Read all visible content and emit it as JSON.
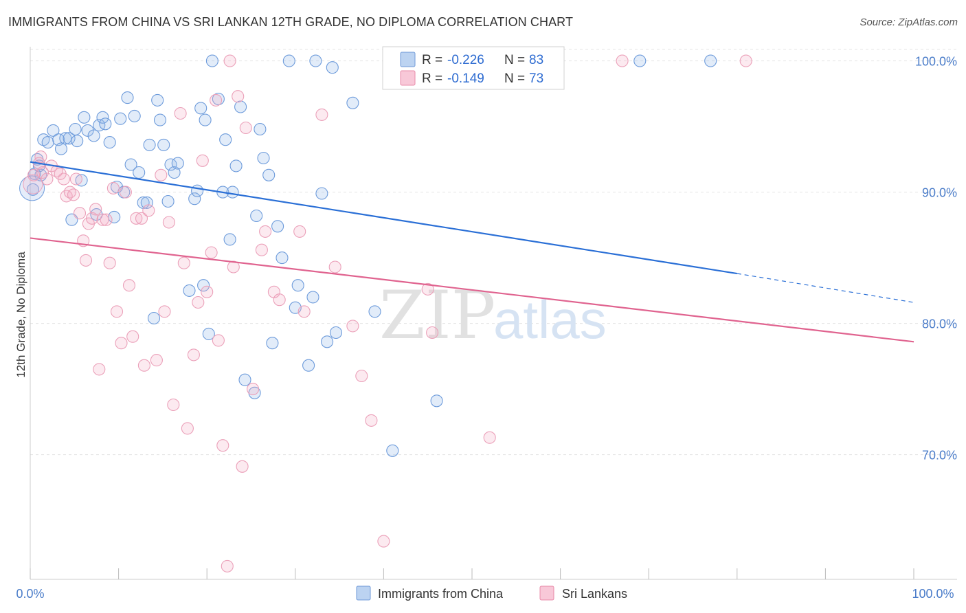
{
  "header": {
    "title": "IMMIGRANTS FROM CHINA VS SRI LANKAN 12TH GRADE, NO DIPLOMA CORRELATION CHART",
    "source": "Source: ZipAtlas.com"
  },
  "watermark": {
    "zip": "ZIP",
    "atlas": "atlas"
  },
  "legend": {
    "rows": [
      {
        "r_label": "R =",
        "r_value": "-0.226",
        "n_label": "N =",
        "n_value": "83"
      },
      {
        "r_label": "R =",
        "r_value": "-0.149",
        "n_label": "N =",
        "n_value": "73"
      }
    ]
  },
  "bottom_legend": [
    "Immigrants from China",
    "Sri Lankans"
  ],
  "chart_data": {
    "type": "scatter",
    "title": "IMMIGRANTS FROM CHINA VS SRI LANKAN 12TH GRADE, NO DIPLOMA CORRELATION CHART",
    "xlabel": "",
    "ylabel": "12th Grade, No Diploma",
    "xlim": [
      0,
      100
    ],
    "ylim": [
      60.5,
      101.5
    ],
    "x_tick_labels": [
      "0.0%",
      "100.0%"
    ],
    "y_ticks": [
      70,
      80,
      90,
      100
    ],
    "y_tick_labels": [
      "70.0%",
      "80.0%",
      "90.0%",
      "100.0%"
    ],
    "grid": true,
    "legend_position": "top-center",
    "colors": {
      "china": "#5b8fd8",
      "sri": "#e889a8",
      "china_line": "#2a6fd6",
      "sri_line": "#e0638f"
    },
    "series": [
      {
        "name": "Immigrants from China",
        "color": "#5b8fd8",
        "trend": {
          "x": [
            0,
            80,
            100
          ],
          "y": [
            92.3,
            83.8,
            81.6
          ],
          "solid_until": 80
        },
        "points": [
          [
            0.3,
            90.2
          ],
          [
            0.8,
            92.5
          ],
          [
            1.2,
            91.3
          ],
          [
            1.5,
            94.0
          ],
          [
            2.0,
            93.8
          ],
          [
            2.6,
            94.7
          ],
          [
            3.2,
            94.0
          ],
          [
            3.5,
            93.3
          ],
          [
            4.0,
            94.1
          ],
          [
            4.4,
            94.1
          ],
          [
            4.7,
            87.9
          ],
          [
            5.1,
            94.8
          ],
          [
            5.3,
            93.9
          ],
          [
            5.8,
            90.9
          ],
          [
            6.1,
            95.7
          ],
          [
            6.5,
            94.7
          ],
          [
            7.2,
            94.3
          ],
          [
            7.5,
            88.3
          ],
          [
            7.8,
            95.1
          ],
          [
            8.2,
            95.7
          ],
          [
            8.5,
            95.2
          ],
          [
            9.0,
            93.8
          ],
          [
            9.5,
            88.1
          ],
          [
            9.8,
            90.4
          ],
          [
            10.2,
            95.6
          ],
          [
            10.6,
            90.0
          ],
          [
            11.0,
            97.2
          ],
          [
            11.4,
            92.1
          ],
          [
            11.8,
            95.8
          ],
          [
            12.3,
            91.5
          ],
          [
            12.8,
            89.2
          ],
          [
            13.2,
            89.2
          ],
          [
            13.5,
            93.6
          ],
          [
            14.0,
            80.4
          ],
          [
            14.4,
            97.0
          ],
          [
            14.7,
            95.5
          ],
          [
            15.1,
            93.6
          ],
          [
            15.6,
            89.3
          ],
          [
            15.9,
            92.1
          ],
          [
            16.3,
            91.5
          ],
          [
            16.7,
            92.2
          ],
          [
            18.0,
            82.5
          ],
          [
            18.6,
            89.5
          ],
          [
            18.9,
            90.1
          ],
          [
            19.3,
            96.4
          ],
          [
            19.6,
            82.9
          ],
          [
            19.8,
            95.5
          ],
          [
            20.2,
            79.2
          ],
          [
            20.6,
            100.0
          ],
          [
            21.3,
            97.1
          ],
          [
            21.8,
            90.0
          ],
          [
            22.1,
            94.0
          ],
          [
            22.6,
            86.4
          ],
          [
            22.9,
            90.0
          ],
          [
            23.3,
            92.0
          ],
          [
            23.8,
            96.5
          ],
          [
            24.3,
            75.7
          ],
          [
            25.4,
            74.7
          ],
          [
            25.6,
            88.2
          ],
          [
            26.0,
            94.8
          ],
          [
            26.4,
            92.6
          ],
          [
            27.0,
            91.3
          ],
          [
            27.4,
            78.5
          ],
          [
            28.0,
            87.4
          ],
          [
            28.5,
            85.0
          ],
          [
            29.3,
            100.0
          ],
          [
            30.0,
            81.2
          ],
          [
            30.3,
            82.9
          ],
          [
            31.5,
            76.8
          ],
          [
            32.0,
            82.0
          ],
          [
            32.3,
            100.0
          ],
          [
            33.0,
            89.9
          ],
          [
            33.6,
            78.6
          ],
          [
            34.2,
            99.5
          ],
          [
            34.6,
            79.3
          ],
          [
            36.5,
            96.8
          ],
          [
            39.0,
            80.9
          ],
          [
            41.0,
            70.3
          ],
          [
            46.0,
            74.1
          ],
          [
            69.0,
            100.0
          ],
          [
            77.0,
            100.0
          ],
          [
            0.5,
            91.4
          ],
          [
            1.0,
            92.0
          ]
        ]
      },
      {
        "name": "Sri Lankans",
        "color": "#e889a8",
        "trend": {
          "x": [
            0,
            100
          ],
          "y": [
            86.5,
            78.6
          ],
          "solid_until": 100
        },
        "points": [
          [
            0.4,
            91.3
          ],
          [
            1.0,
            92.2
          ],
          [
            1.4,
            91.5
          ],
          [
            1.9,
            91.0
          ],
          [
            2.4,
            92.0
          ],
          [
            3.0,
            91.6
          ],
          [
            3.4,
            91.4
          ],
          [
            3.8,
            91.0
          ],
          [
            4.1,
            89.7
          ],
          [
            4.5,
            90.0
          ],
          [
            4.9,
            89.8
          ],
          [
            5.2,
            91.0
          ],
          [
            5.6,
            88.4
          ],
          [
            6.0,
            86.3
          ],
          [
            6.3,
            84.8
          ],
          [
            6.6,
            87.6
          ],
          [
            7.0,
            88.0
          ],
          [
            7.4,
            88.7
          ],
          [
            7.8,
            76.5
          ],
          [
            8.2,
            87.9
          ],
          [
            8.6,
            87.9
          ],
          [
            9.0,
            84.6
          ],
          [
            9.4,
            90.3
          ],
          [
            9.8,
            80.9
          ],
          [
            10.3,
            78.5
          ],
          [
            10.8,
            90.0
          ],
          [
            11.2,
            82.9
          ],
          [
            11.6,
            79.0
          ],
          [
            12.0,
            88.0
          ],
          [
            12.6,
            88.0
          ],
          [
            12.9,
            76.8
          ],
          [
            13.4,
            88.6
          ],
          [
            14.3,
            77.2
          ],
          [
            14.8,
            91.3
          ],
          [
            15.2,
            80.9
          ],
          [
            15.7,
            87.7
          ],
          [
            16.2,
            73.8
          ],
          [
            17.0,
            96.0
          ],
          [
            17.4,
            84.6
          ],
          [
            17.8,
            72.0
          ],
          [
            18.5,
            77.6
          ],
          [
            19.0,
            81.6
          ],
          [
            19.5,
            92.4
          ],
          [
            20.0,
            82.4
          ],
          [
            20.5,
            85.4
          ],
          [
            21.0,
            97.0
          ],
          [
            21.3,
            78.7
          ],
          [
            21.8,
            70.7
          ],
          [
            22.3,
            61.5
          ],
          [
            22.6,
            100.0
          ],
          [
            23.0,
            84.3
          ],
          [
            23.5,
            97.3
          ],
          [
            24.0,
            69.1
          ],
          [
            24.4,
            94.9
          ],
          [
            25.2,
            75.0
          ],
          [
            26.2,
            85.6
          ],
          [
            26.6,
            87.0
          ],
          [
            27.6,
            82.4
          ],
          [
            28.2,
            81.8
          ],
          [
            30.5,
            87.0
          ],
          [
            31.0,
            80.9
          ],
          [
            33.0,
            95.9
          ],
          [
            34.5,
            84.3
          ],
          [
            36.5,
            79.8
          ],
          [
            37.5,
            76.0
          ],
          [
            38.6,
            72.6
          ],
          [
            40.0,
            63.4
          ],
          [
            45.0,
            82.6
          ],
          [
            45.5,
            79.3
          ],
          [
            52.0,
            71.3
          ],
          [
            67.0,
            100.0
          ],
          [
            81.0,
            100.0
          ],
          [
            1.2,
            92.7
          ]
        ]
      }
    ]
  }
}
